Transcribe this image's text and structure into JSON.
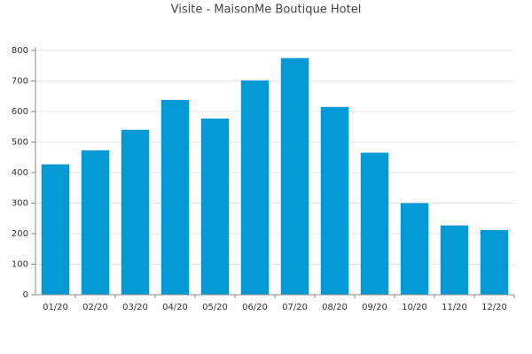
{
  "chart_data": {
    "type": "bar",
    "title": "Visite - MaisonMe Boutique Hotel",
    "categories": [
      "01/20",
      "02/20",
      "03/20",
      "04/20",
      "05/20",
      "06/20",
      "07/20",
      "08/20",
      "09/20",
      "10/20",
      "11/20",
      "12/20"
    ],
    "values": [
      427,
      473,
      540,
      638,
      577,
      702,
      775,
      615,
      465,
      300,
      227,
      212
    ],
    "color": "#0399d4",
    "ylim": [
      0,
      800
    ],
    "yticks": [
      0,
      100,
      200,
      300,
      400,
      500,
      600,
      700,
      800
    ],
    "grid": true
  }
}
